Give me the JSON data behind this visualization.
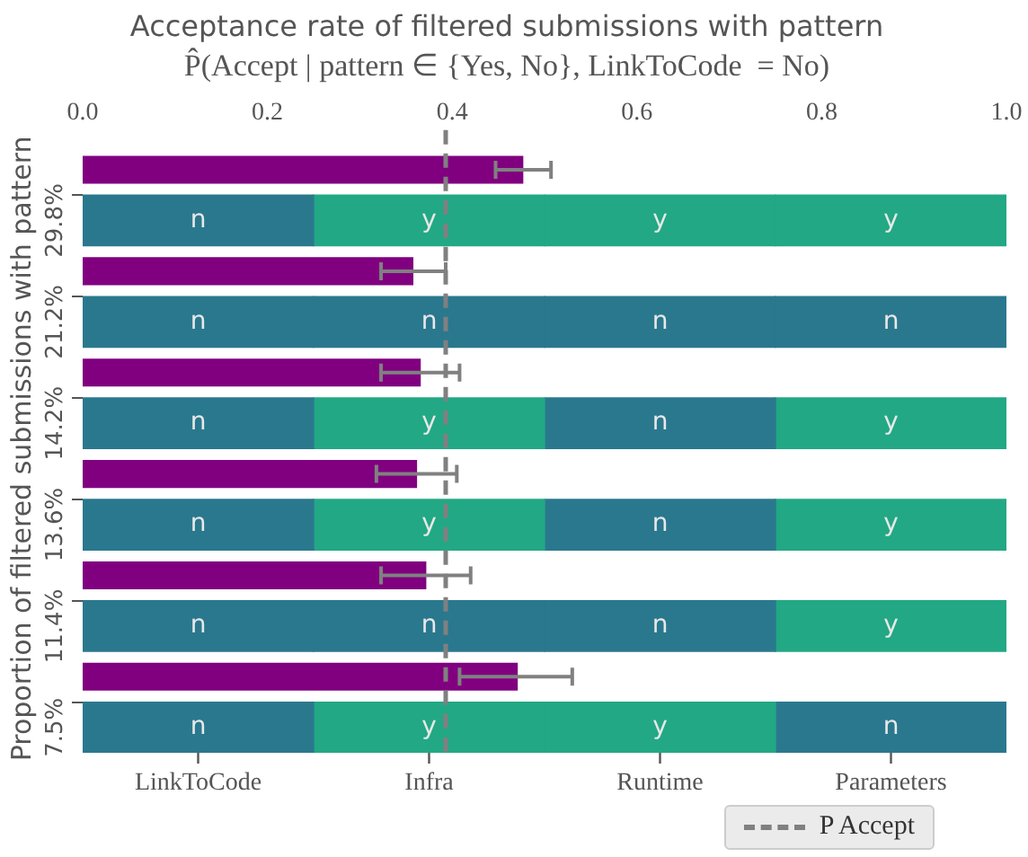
{
  "chart_data": {
    "type": "bar",
    "orientation": "horizontal",
    "stacked": true,
    "title": "Acceptance rate of filtered submissions with pattern",
    "subtitle": "P̂(Accept | pattern ∈ {Yes, No}, LinkToCode  = No)",
    "ylabel": "Proportion of filtered submissions with pattern",
    "categories": [
      null,
      "29.8%",
      null,
      "21.2%",
      null,
      "14.2%",
      null,
      "13.6%",
      null,
      "11.4%",
      null,
      "7.5%"
    ],
    "series": [
      {
        "color": "#800080",
        "values": [
          0.477,
          null,
          0.358,
          null,
          0.366,
          null,
          0.362,
          null,
          0.372,
          null,
          0.471,
          null
        ],
        "errors": [
          [
            0.447,
            0.507
          ],
          null,
          [
            0.323,
            0.393
          ],
          null,
          [
            0.323,
            0.408
          ],
          null,
          [
            0.318,
            0.405
          ],
          null,
          [
            0.323,
            0.42
          ],
          null,
          [
            0.408,
            0.53
          ],
          null
        ]
      },
      {
        "values": [
          null,
          0.25,
          null,
          0.25,
          null,
          0.25,
          null,
          0.25,
          null,
          0.25,
          null,
          0.25
        ],
        "value_labels": [
          null,
          "n",
          null,
          "n",
          null,
          "n",
          null,
          "n",
          null,
          "n",
          null,
          "n"
        ],
        "colors": [
          null,
          "#2a788e",
          null,
          "#2a788e",
          null,
          "#2a788e",
          null,
          "#2a788e",
          null,
          "#2a788e",
          null,
          "#2a788e"
        ]
      },
      {
        "values": [
          null,
          0.25,
          null,
          0.25,
          null,
          0.25,
          null,
          0.25,
          null,
          0.25,
          null,
          0.25
        ],
        "value_labels": [
          null,
          "y",
          null,
          "n",
          null,
          "y",
          null,
          "y",
          null,
          "n",
          null,
          "y"
        ],
        "colors": [
          null,
          "#22a884",
          null,
          "#2a788e",
          null,
          "#22a884",
          null,
          "#22a884",
          null,
          "#2a788e",
          null,
          "#22a884"
        ]
      },
      {
        "values": [
          null,
          0.25,
          null,
          0.25,
          null,
          0.25,
          null,
          0.25,
          null,
          0.25,
          null,
          0.25
        ],
        "value_labels": [
          null,
          "y",
          null,
          "n",
          null,
          "n",
          null,
          "n",
          null,
          "n",
          null,
          "y"
        ],
        "colors": [
          null,
          "#22a884",
          null,
          "#2a788e",
          null,
          "#2a788e",
          null,
          "#2a788e",
          null,
          "#2a788e",
          null,
          "#22a884"
        ]
      },
      {
        "values": [
          null,
          0.25,
          null,
          0.25,
          null,
          0.25,
          null,
          0.25,
          null,
          0.25,
          null,
          0.25
        ],
        "value_labels": [
          null,
          "y",
          null,
          "n",
          null,
          "y",
          null,
          "y",
          null,
          "y",
          null,
          "n"
        ],
        "colors": [
          null,
          "#22a884",
          null,
          "#2a788e",
          null,
          "#22a884",
          null,
          "#22a884",
          null,
          "#22a884",
          null,
          "#2a788e"
        ]
      }
    ],
    "xlim": [
      0,
      1
    ],
    "xticks": [
      {
        "value": 0,
        "label": "0.0"
      },
      {
        "value": 0.2,
        "label": "0.2"
      },
      {
        "value": 0.4,
        "label": "0.4"
      },
      {
        "value": 0.6,
        "label": "0.6"
      },
      {
        "value": 0.8,
        "label": "0.8"
      },
      {
        "value": 1,
        "label": "1.0"
      }
    ],
    "annotations": [
      "LinkToCode",
      "Infra",
      "Runtime",
      "Parameters"
    ],
    "ref_lines": [
      {
        "axis": "x",
        "value": 0.393,
        "label": "P Accept",
        "color": "#808080",
        "line_style": "dashed"
      }
    ],
    "grid": false,
    "legend": "bottom right"
  }
}
